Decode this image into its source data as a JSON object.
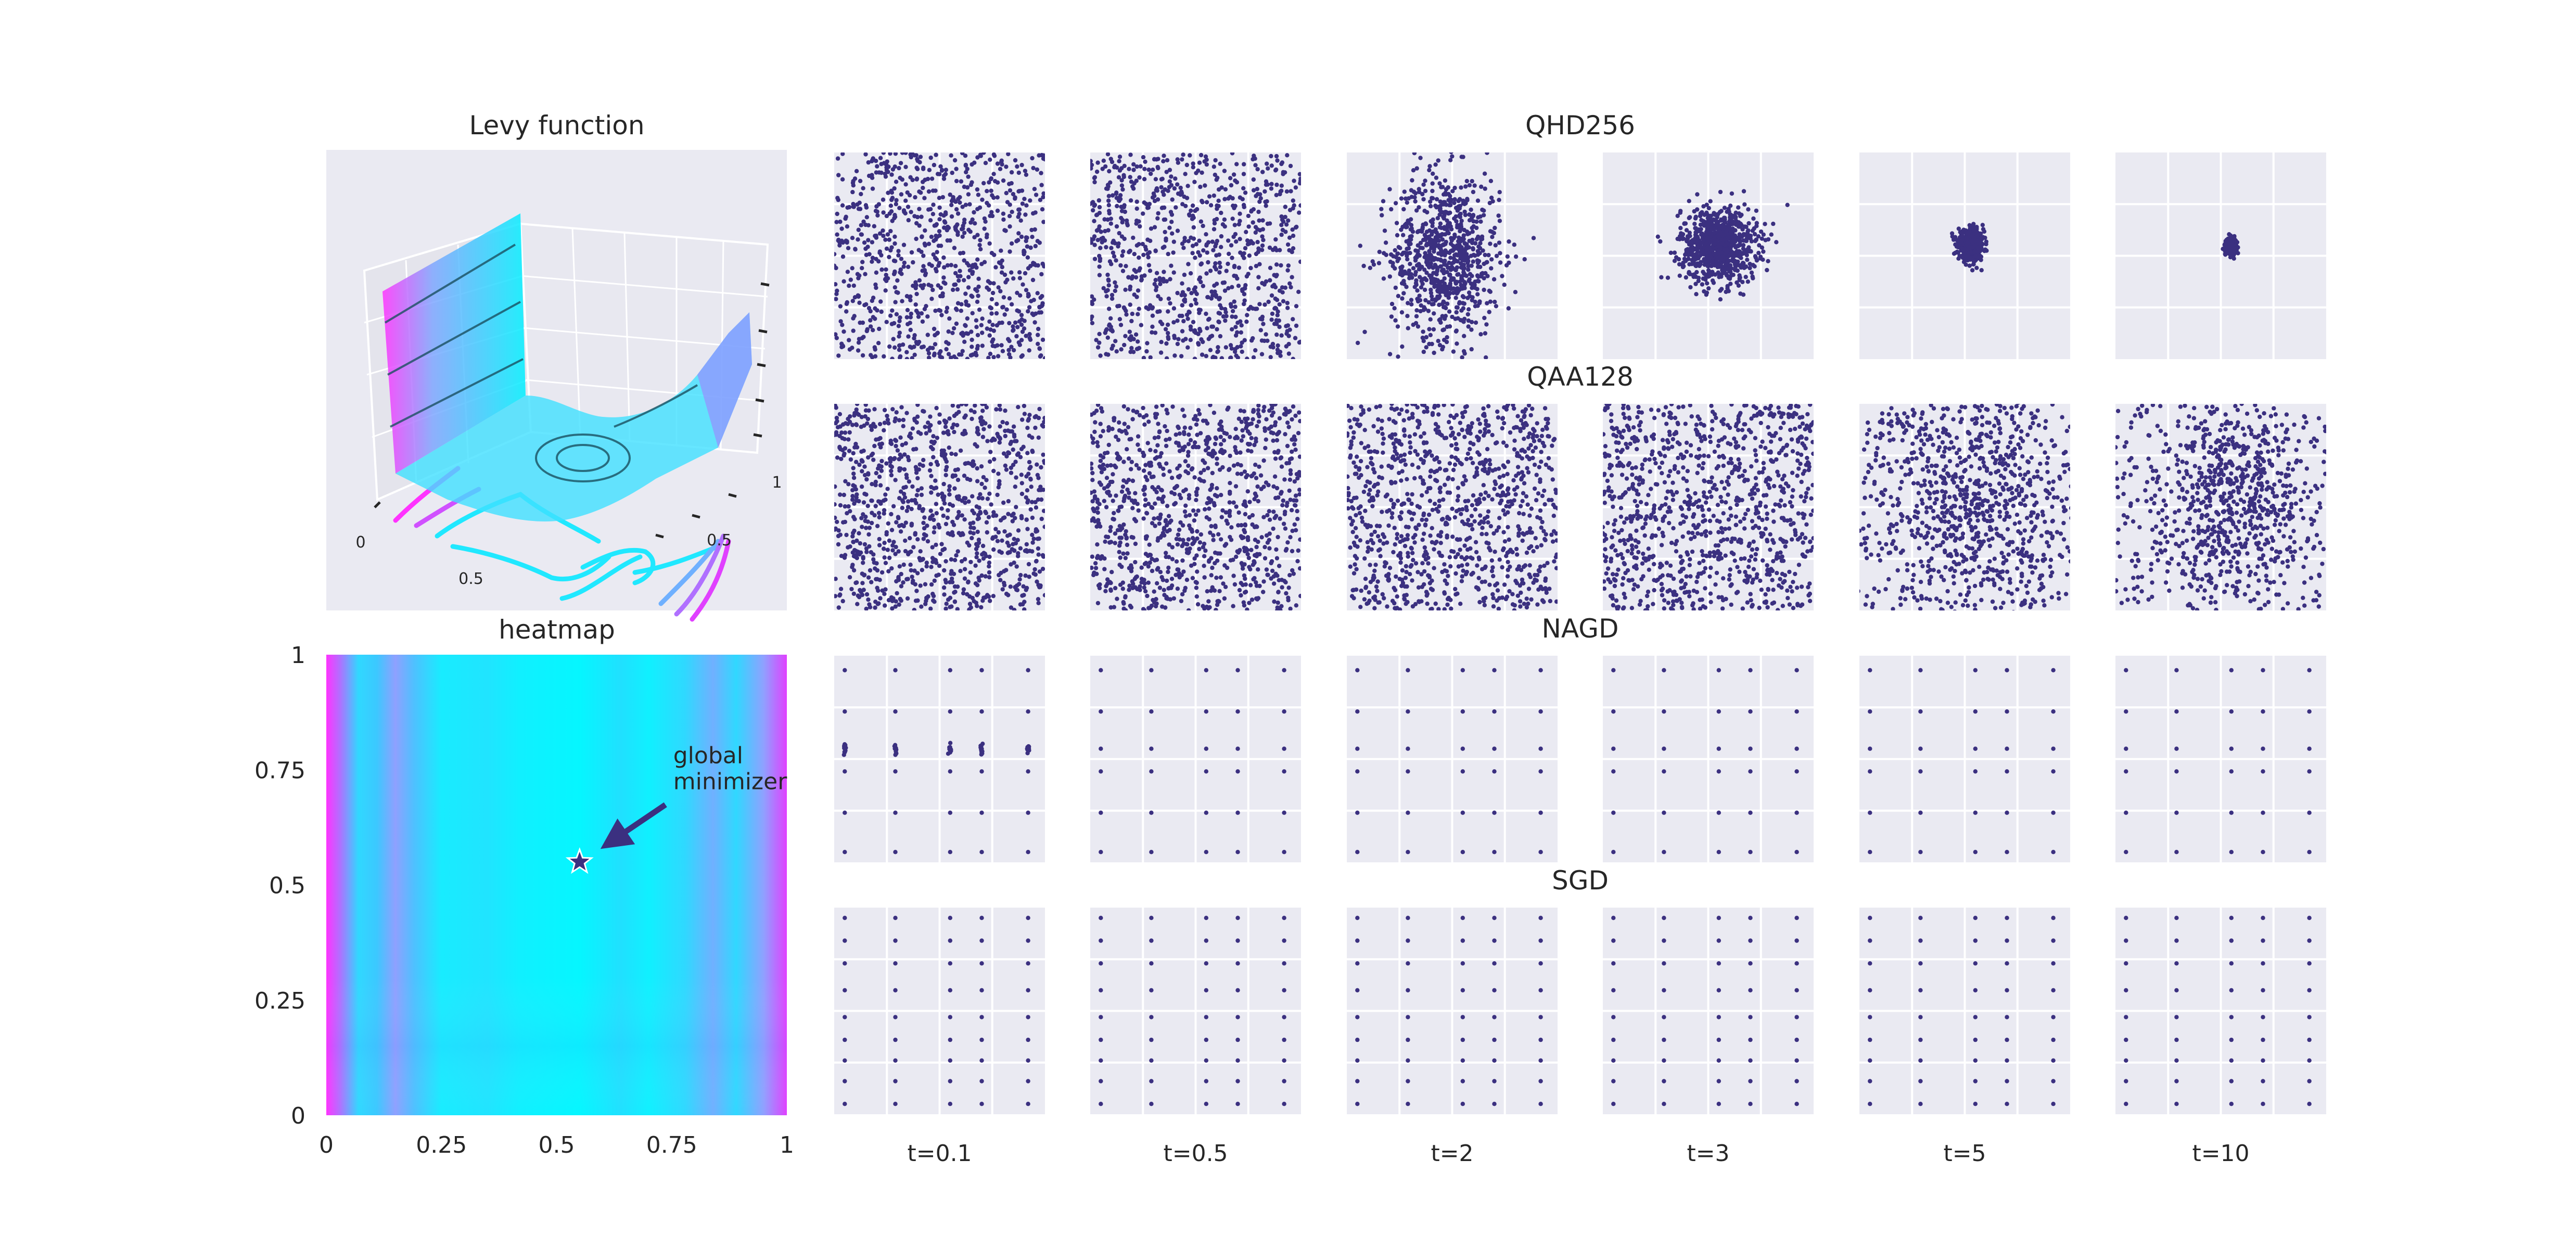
{
  "chart_data": [
    {
      "type": "surface",
      "title": "Levy function",
      "tick_labels": [
        "0",
        "0.5",
        "0.5",
        "1"
      ],
      "colormap": [
        "#00f0ff",
        "#7fa6ff",
        "#ff33ff"
      ]
    },
    {
      "type": "heatmap",
      "title": "heatmap",
      "x_ticks": [
        "0",
        "0.25",
        "0.5",
        "0.75",
        "1"
      ],
      "y_ticks": [
        "0",
        "0.25",
        "0.5",
        "0.75",
        "1"
      ],
      "xlim": [
        0,
        1
      ],
      "ylim": [
        0,
        1
      ],
      "annotation": {
        "text_line1": "global",
        "text_line2": "minimizer",
        "point": [
          0.55,
          0.55
        ]
      },
      "colormap": [
        "#ff33ff",
        "#7fa6ff",
        "#00f0ff"
      ]
    },
    {
      "type": "scatter",
      "rows": [
        "QHD256",
        "QAA128",
        "NAGD",
        "SGD"
      ],
      "columns": [
        "t=0.1",
        "t=0.5",
        "t=2",
        "t=3",
        "t=5",
        "t=10"
      ],
      "xlim": [
        0,
        1
      ],
      "ylim": [
        0,
        1
      ],
      "point_color": "#3b3080",
      "panel_background": "#eaeaf2",
      "distributions": {
        "QHD256": [
          {
            "kind": "uniform",
            "n": 900
          },
          {
            "kind": "uniform",
            "n": 900
          },
          {
            "kind": "gauss",
            "n": 850,
            "cx": 0.47,
            "cy": 0.5,
            "sx": 0.13,
            "sy": 0.2
          },
          {
            "kind": "gauss",
            "n": 850,
            "cx": 0.55,
            "cy": 0.55,
            "sx": 0.09,
            "sy": 0.09
          },
          {
            "kind": "gauss",
            "n": 600,
            "cx": 0.53,
            "cy": 0.55,
            "sx": 0.03,
            "sy": 0.035
          },
          {
            "kind": "gauss",
            "n": 250,
            "cx": 0.55,
            "cy": 0.55,
            "sx": 0.012,
            "sy": 0.018
          }
        ],
        "QAA128": [
          {
            "kind": "uniform",
            "n": 1000
          },
          {
            "kind": "uniform",
            "n": 1000
          },
          {
            "kind": "uniform",
            "n": 1000
          },
          {
            "kind": "uniform",
            "n": 1000
          },
          {
            "kind": "mix",
            "n": 1000,
            "cx": 0.55,
            "cy": 0.5,
            "sx": 0.25,
            "sy": 0.3
          },
          {
            "kind": "mix",
            "n": 900,
            "cx": 0.55,
            "cy": 0.55,
            "sx": 0.18,
            "sy": 0.25
          }
        ],
        "NAGD": [
          {
            "kind": "grid",
            "xs": [
              0.05,
              0.29,
              0.55,
              0.7,
              0.92
            ],
            "ys": [
              0.05,
              0.24,
              0.44,
              0.55,
              0.73,
              0.93
            ],
            "cluster_y": 0.55,
            "spread": 0.015
          },
          {
            "kind": "grid",
            "xs": [
              0.05,
              0.29,
              0.55,
              0.7,
              0.92
            ],
            "ys": [
              0.05,
              0.24,
              0.44,
              0.55,
              0.73,
              0.93
            ],
            "cluster_y": -1,
            "spread": 0.0
          },
          {
            "kind": "grid",
            "xs": [
              0.05,
              0.29,
              0.55,
              0.7,
              0.92
            ],
            "ys": [
              0.05,
              0.24,
              0.44,
              0.55,
              0.73,
              0.93
            ],
            "cluster_y": -1,
            "spread": 0.0
          },
          {
            "kind": "grid",
            "xs": [
              0.05,
              0.29,
              0.55,
              0.7,
              0.92
            ],
            "ys": [
              0.05,
              0.24,
              0.44,
              0.55,
              0.73,
              0.93
            ],
            "cluster_y": -1,
            "spread": 0.0
          },
          {
            "kind": "grid",
            "xs": [
              0.05,
              0.29,
              0.55,
              0.7,
              0.92
            ],
            "ys": [
              0.05,
              0.24,
              0.44,
              0.55,
              0.73,
              0.93
            ],
            "cluster_y": -1,
            "spread": 0.0
          },
          {
            "kind": "grid",
            "xs": [
              0.05,
              0.29,
              0.55,
              0.7,
              0.92
            ],
            "ys": [
              0.05,
              0.24,
              0.44,
              0.55,
              0.73,
              0.93
            ],
            "cluster_y": -1,
            "spread": 0.0
          }
        ],
        "SGD": [
          {
            "kind": "grid",
            "xs": [
              0.05,
              0.29,
              0.55,
              0.7,
              0.92
            ],
            "ys": [
              0.05,
              0.16,
              0.26,
              0.36,
              0.47,
              0.6,
              0.73,
              0.84,
              0.95
            ],
            "cluster_y": 0.55,
            "spread": 0.06
          },
          {
            "kind": "grid",
            "xs": [
              0.05,
              0.29,
              0.55,
              0.7,
              0.92
            ],
            "ys": [
              0.05,
              0.16,
              0.26,
              0.36,
              0.47,
              0.6,
              0.73,
              0.84,
              0.95
            ],
            "cluster_y": 0.55,
            "spread": 0.05
          },
          {
            "kind": "grid",
            "xs": [
              0.05,
              0.29,
              0.55,
              0.7,
              0.92
            ],
            "ys": [
              0.05,
              0.16,
              0.26,
              0.36,
              0.47,
              0.6,
              0.73,
              0.84,
              0.95
            ],
            "cluster_y": 0.55,
            "spread": 0.015
          },
          {
            "kind": "grid",
            "xs": [
              0.05,
              0.29,
              0.55,
              0.7,
              0.92
            ],
            "ys": [
              0.05,
              0.16,
              0.26,
              0.36,
              0.47,
              0.6,
              0.73,
              0.84,
              0.95
            ],
            "cluster_y": 0.55,
            "spread": 0.015
          },
          {
            "kind": "grid",
            "xs": [
              0.05,
              0.29,
              0.55,
              0.7,
              0.92
            ],
            "ys": [
              0.05,
              0.16,
              0.26,
              0.36,
              0.47,
              0.6,
              0.73,
              0.84,
              0.95
            ],
            "cluster_y": 0.55,
            "spread": 0.015
          },
          {
            "kind": "grid",
            "xs": [
              0.05,
              0.29,
              0.55,
              0.7,
              0.92
            ],
            "ys": [
              0.05,
              0.16,
              0.26,
              0.36,
              0.47,
              0.6,
              0.73,
              0.84,
              0.95
            ],
            "cluster_y": 0.55,
            "spread": 0.015
          }
        ]
      }
    }
  ]
}
